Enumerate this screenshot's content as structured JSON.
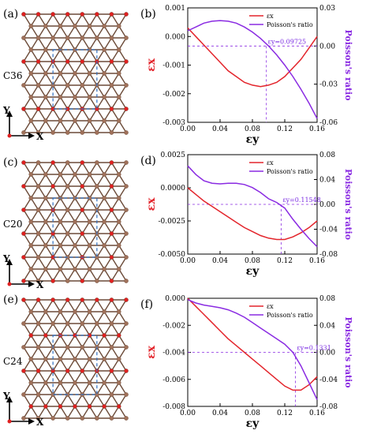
{
  "colors": {
    "red": "#e3242b",
    "purple": "#8a2be2",
    "carbon": "#a0715a",
    "carbon_stroke": "#6b4a38",
    "red_atom": "#e02020",
    "cell": "#2f6fc0"
  },
  "panels_left": [
    {
      "label": "(a)",
      "name": "C36",
      "y0": 8,
      "variant": 0
    },
    {
      "label": "(c)",
      "name": "C20",
      "y0": 196,
      "variant": 1
    },
    {
      "label": "(e)",
      "name": "C24",
      "y0": 370,
      "variant": 2
    }
  ],
  "axes_labels": {
    "x": "X",
    "y": "Y"
  },
  "chart_data": [
    {
      "type": "line",
      "panel_label": "(b)",
      "xlabel": "εy",
      "ylabel_left": "εx",
      "ylabel_right": "Poisson's ratio",
      "xlim": [
        0,
        0.16
      ],
      "ylim_left": [
        -0.003,
        0.001
      ],
      "ylim_right": [
        -0.06,
        0.03
      ],
      "x_ticks": [
        0.0,
        0.04,
        0.08,
        0.12,
        0.16
      ],
      "x_tick_labels": [
        "0.00",
        "0.04",
        "0.08",
        "0.12",
        "0.16"
      ],
      "yl_ticks": [
        0.001,
        0.0,
        -0.001,
        -0.002,
        -0.003
      ],
      "yl_tick_labels": [
        "0.001",
        "0.000",
        "-0.001",
        "-0.002",
        "-0.003"
      ],
      "yr_ticks": [
        0.03,
        0.0,
        -0.03,
        -0.06
      ],
      "yr_tick_labels": [
        "0.03",
        "0.00",
        "-0.03",
        "-0.06"
      ],
      "legend": [
        "εx",
        "Poisson's ratio"
      ],
      "annotation": "εy=0.09725",
      "cross_x": 0.09725,
      "cross_yr": 0.0,
      "series": [
        {
          "name": "εx",
          "axis": "left",
          "color": "#e3242b",
          "x": [
            0.0,
            0.01,
            0.02,
            0.03,
            0.04,
            0.05,
            0.06,
            0.07,
            0.08,
            0.09,
            0.1,
            0.11,
            0.12,
            0.13,
            0.14,
            0.15,
            0.16
          ],
          "y": [
            0.0003,
            0.0,
            -0.0003,
            -0.0006,
            -0.0009,
            -0.0012,
            -0.0014,
            -0.0016,
            -0.0017,
            -0.00175,
            -0.0017,
            -0.0016,
            -0.0014,
            -0.0011,
            -0.0008,
            -0.0004,
            0.0
          ]
        },
        {
          "name": "Poisson's ratio",
          "axis": "right",
          "color": "#8a2be2",
          "x": [
            0.0,
            0.01,
            0.02,
            0.03,
            0.04,
            0.05,
            0.06,
            0.07,
            0.08,
            0.09,
            0.1,
            0.11,
            0.12,
            0.13,
            0.14,
            0.15,
            0.16
          ],
          "y": [
            0.012,
            0.015,
            0.018,
            0.0195,
            0.02,
            0.0195,
            0.018,
            0.015,
            0.011,
            0.006,
            0.0,
            -0.007,
            -0.015,
            -0.024,
            -0.034,
            -0.045,
            -0.057
          ]
        }
      ]
    },
    {
      "type": "line",
      "panel_label": "(d)",
      "xlabel": "εy",
      "ylabel_left": "εx",
      "ylabel_right": "Poisson's ratio",
      "xlim": [
        0,
        0.16
      ],
      "ylim_left": [
        -0.005,
        0.0025
      ],
      "ylim_right": [
        -0.08,
        0.08
      ],
      "x_ticks": [
        0.0,
        0.04,
        0.08,
        0.12,
        0.16
      ],
      "x_tick_labels": [
        "0.00",
        "0.04",
        "0.08",
        "0.12",
        "0.16"
      ],
      "yl_ticks": [
        0.0025,
        0.0,
        -0.0025,
        -0.005
      ],
      "yl_tick_labels": [
        "0.0025",
        "0.0000",
        "-0.0025",
        "-0.0050"
      ],
      "yr_ticks": [
        0.08,
        0.04,
        0.0,
        -0.04,
        -0.08
      ],
      "yr_tick_labels": [
        "0.08",
        "0.04",
        "0.00",
        "-0.04",
        "-0.08"
      ],
      "legend": [
        "εx",
        "Poisson's ratio"
      ],
      "annotation": "εy=0.11548",
      "cross_x": 0.11548,
      "cross_yr": 0.0,
      "series": [
        {
          "name": "εx",
          "axis": "left",
          "color": "#e3242b",
          "x": [
            0.0,
            0.01,
            0.02,
            0.03,
            0.04,
            0.05,
            0.06,
            0.07,
            0.08,
            0.09,
            0.1,
            0.11,
            0.12,
            0.13,
            0.14,
            0.15,
            0.16
          ],
          "y": [
            0.0,
            -0.0005,
            -0.001,
            -0.0014,
            -0.0018,
            -0.0022,
            -0.0026,
            -0.003,
            -0.0033,
            -0.0036,
            -0.0038,
            -0.0039,
            -0.0039,
            -0.0037,
            -0.0034,
            -0.003,
            -0.0025
          ]
        },
        {
          "name": "Poisson's ratio",
          "axis": "right",
          "color": "#8a2be2",
          "x": [
            0.0,
            0.01,
            0.02,
            0.03,
            0.04,
            0.05,
            0.06,
            0.07,
            0.08,
            0.09,
            0.1,
            0.11,
            0.12,
            0.13,
            0.14,
            0.15,
            0.16
          ],
          "y": [
            0.062,
            0.048,
            0.038,
            0.034,
            0.033,
            0.034,
            0.034,
            0.032,
            0.027,
            0.019,
            0.009,
            0.003,
            -0.006,
            -0.024,
            -0.04,
            -0.055,
            -0.068
          ]
        }
      ]
    },
    {
      "type": "line",
      "panel_label": "(f)",
      "xlabel": "εy",
      "ylabel_left": "εx",
      "ylabel_right": "Poisson's ratio",
      "xlim": [
        0,
        0.16
      ],
      "ylim_left": [
        -0.008,
        0.0
      ],
      "ylim_right": [
        -0.08,
        0.08
      ],
      "x_ticks": [
        0.0,
        0.04,
        0.08,
        0.12,
        0.16
      ],
      "x_tick_labels": [
        "0.00",
        "0.04",
        "0.08",
        "0.12",
        "0.16"
      ],
      "yl_ticks": [
        0.0,
        -0.002,
        -0.004,
        -0.006,
        -0.008
      ],
      "yl_tick_labels": [
        "0.000",
        "-0.002",
        "-0.004",
        "-0.006",
        "-0.008"
      ],
      "yr_ticks": [
        0.08,
        0.04,
        0.0,
        -0.04,
        -0.08
      ],
      "yr_tick_labels": [
        "0.08",
        "0.04",
        "0.00",
        "-0.04",
        "-0.08"
      ],
      "legend": [
        "εx",
        "Poisson's ratio"
      ],
      "annotation": "εy=0.1331",
      "cross_x": 0.1331,
      "cross_yr": 0.0,
      "series": [
        {
          "name": "εx",
          "axis": "left",
          "color": "#e3242b",
          "x": [
            0.0,
            0.01,
            0.02,
            0.03,
            0.04,
            0.05,
            0.06,
            0.07,
            0.08,
            0.09,
            0.1,
            0.11,
            0.12,
            0.13,
            0.14,
            0.15,
            0.16
          ],
          "y": [
            0.0,
            -0.0006,
            -0.0012,
            -0.0018,
            -0.0024,
            -0.003,
            -0.0035,
            -0.004,
            -0.0045,
            -0.005,
            -0.0055,
            -0.006,
            -0.0065,
            -0.0068,
            -0.0068,
            -0.0064,
            -0.0058
          ]
        },
        {
          "name": "Poisson's ratio",
          "axis": "right",
          "color": "#8a2be2",
          "x": [
            0.0,
            0.01,
            0.02,
            0.03,
            0.04,
            0.05,
            0.06,
            0.07,
            0.08,
            0.09,
            0.1,
            0.11,
            0.12,
            0.13,
            0.14,
            0.15,
            0.16
          ],
          "y": [
            0.078,
            0.073,
            0.07,
            0.068,
            0.066,
            0.063,
            0.058,
            0.052,
            0.044,
            0.036,
            0.028,
            0.02,
            0.012,
            0.0,
            -0.02,
            -0.045,
            -0.07
          ]
        }
      ]
    }
  ]
}
